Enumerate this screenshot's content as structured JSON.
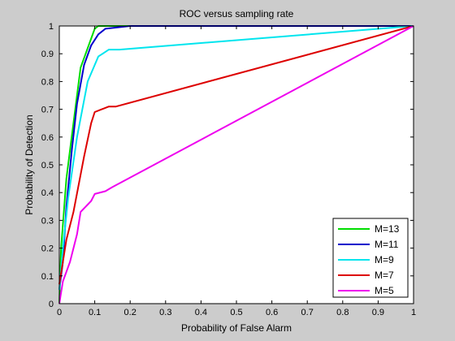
{
  "chart_data": {
    "type": "line",
    "title": "ROC versus sampling rate",
    "xlabel": "Probability of False Alarm",
    "ylabel": "Probability of Detection",
    "xlim": [
      0,
      1
    ],
    "ylim": [
      0,
      1
    ],
    "xticks": [
      "0",
      "0.1",
      "0.2",
      "0.3",
      "0.4",
      "0.5",
      "0.6",
      "0.7",
      "0.8",
      "0.9",
      "1"
    ],
    "yticks": [
      "0",
      "0.1",
      "0.2",
      "0.3",
      "0.4",
      "0.5",
      "0.6",
      "0.7",
      "0.8",
      "0.9",
      "1"
    ],
    "grid": false,
    "legend_position": "bottom-right",
    "series": [
      {
        "name": "M=13",
        "color": "#00dd00",
        "points": [
          [
            0,
            0
          ],
          [
            0.005,
            0.2
          ],
          [
            0.02,
            0.45
          ],
          [
            0.04,
            0.65
          ],
          [
            0.06,
            0.85
          ],
          [
            0.08,
            0.92
          ],
          [
            0.1,
            0.99
          ],
          [
            0.11,
            1.0
          ],
          [
            1.0,
            1.0
          ]
        ]
      },
      {
        "name": "M=11",
        "color": "#0000cc",
        "points": [
          [
            0,
            0.05
          ],
          [
            0.01,
            0.15
          ],
          [
            0.02,
            0.35
          ],
          [
            0.035,
            0.55
          ],
          [
            0.05,
            0.72
          ],
          [
            0.07,
            0.86
          ],
          [
            0.09,
            0.93
          ],
          [
            0.11,
            0.97
          ],
          [
            0.13,
            0.99
          ],
          [
            0.2,
            1.0
          ],
          [
            1.0,
            1.0
          ]
        ]
      },
      {
        "name": "M=9",
        "color": "#00e5ee",
        "points": [
          [
            0,
            0.05
          ],
          [
            0.01,
            0.2
          ],
          [
            0.025,
            0.38
          ],
          [
            0.05,
            0.6
          ],
          [
            0.08,
            0.8
          ],
          [
            0.11,
            0.89
          ],
          [
            0.14,
            0.915
          ],
          [
            0.17,
            0.915
          ],
          [
            1.0,
            1.0
          ]
        ]
      },
      {
        "name": "M=7",
        "color": "#dd0000",
        "points": [
          [
            0,
            0.07
          ],
          [
            0.02,
            0.23
          ],
          [
            0.04,
            0.33
          ],
          [
            0.07,
            0.53
          ],
          [
            0.09,
            0.65
          ],
          [
            0.1,
            0.69
          ],
          [
            0.12,
            0.7
          ],
          [
            0.14,
            0.71
          ],
          [
            0.16,
            0.71
          ],
          [
            1.0,
            1.0
          ]
        ]
      },
      {
        "name": "M=5",
        "color": "#ee00ee",
        "points": [
          [
            0,
            0
          ],
          [
            0.01,
            0.08
          ],
          [
            0.03,
            0.15
          ],
          [
            0.05,
            0.25
          ],
          [
            0.06,
            0.33
          ],
          [
            0.09,
            0.37
          ],
          [
            0.1,
            0.395
          ],
          [
            0.13,
            0.405
          ],
          [
            0.15,
            0.42
          ],
          [
            1.0,
            1.0
          ]
        ]
      }
    ]
  }
}
